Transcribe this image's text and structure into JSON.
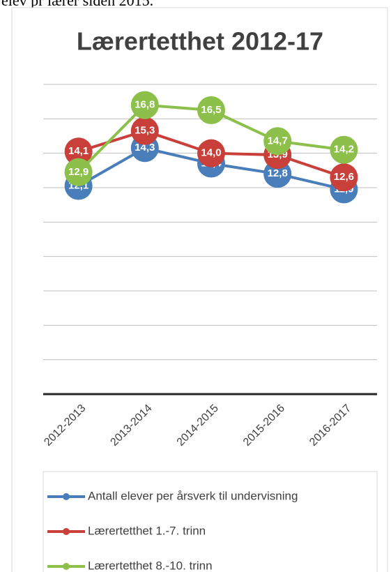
{
  "caption": "elev pr lærer siden 2015.",
  "chart_data": {
    "type": "line",
    "title": "Lærertetthet 2012-17",
    "categories": [
      "2012-2013",
      "2013-2014",
      "2014-2015",
      "2015-2016",
      "2016-2017"
    ],
    "series": [
      {
        "name": "Antall elever per årsverk til undervisning",
        "color": "#4a7ebb",
        "values": [
          12.1,
          14.3,
          13.4,
          12.8,
          11.9
        ],
        "value_labels": [
          "12,1",
          "14,3",
          "13,4",
          "12,8",
          "11,9"
        ]
      },
      {
        "name": "Lærertetthet 1.-7. trinn",
        "color": "#c9403a",
        "values": [
          14.1,
          15.3,
          14.0,
          13.9,
          12.6
        ],
        "value_labels": [
          "14,1",
          "15,3",
          "14,0",
          "13,9",
          "12,6"
        ]
      },
      {
        "name": "Lærertetthet 8.-10. trinn",
        "color": "#8cc04a",
        "values": [
          12.9,
          16.8,
          16.5,
          14.7,
          14.2
        ],
        "value_labels": [
          "12,9",
          "16,8",
          "16,5",
          "14,7",
          "14,2"
        ]
      }
    ],
    "ylim": [
      0,
      18
    ],
    "yticks": [
      0,
      2,
      4,
      6,
      8,
      10,
      12,
      14,
      16,
      18
    ],
    "grid": true,
    "legend": "bottom"
  }
}
